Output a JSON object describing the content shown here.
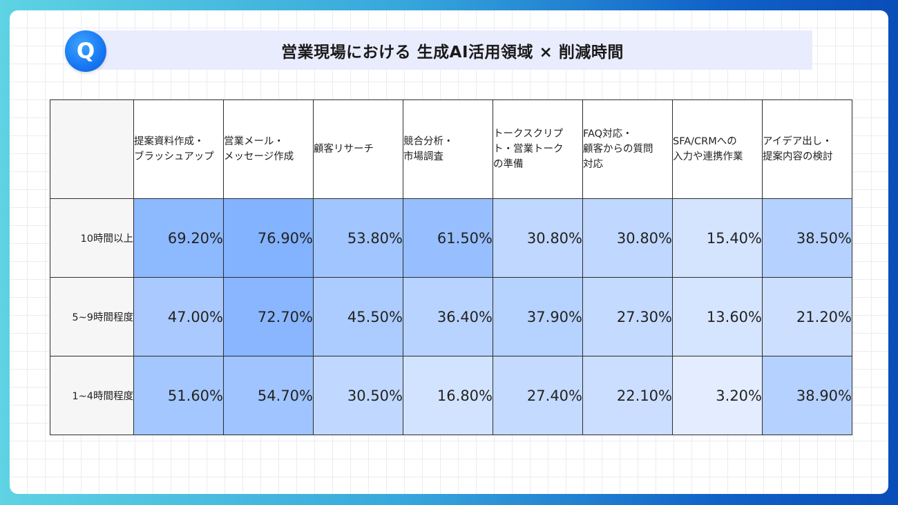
{
  "title": "営業現場における 生成AI活用領域 × 削減時間",
  "logo": {
    "letter": "Q",
    "icon": "q-logo-icon",
    "color": "#1677f2"
  },
  "chart_data": {
    "type": "heatmap",
    "title": "営業現場における 生成AI活用領域 × 削減時間",
    "columns": [
      "提案資料作成・ブラッシュアップ",
      "営業メール・メッセージ作成",
      "顧客リサーチ",
      "競合分析・市場調査",
      "トークスクリプト・営業トークの準備",
      "FAQ対応・顧客からの質問対応",
      "SFA/CRMへの入力や連携作業",
      "アイデア出し・提案内容の検討"
    ],
    "column_lines": [
      [
        "提案資料作成・",
        "ブラッシュアップ"
      ],
      [
        "営業メール・",
        "メッセージ作成"
      ],
      [
        "顧客リサーチ"
      ],
      [
        "競合分析・",
        "市場調査"
      ],
      [
        "トークスクリプ",
        "ト・営業トーク",
        "の準備"
      ],
      [
        "FAQ対応・",
        "顧客からの質問",
        "対応"
      ],
      [
        "SFA/CRMへの",
        "入力や連携作業"
      ],
      [
        "アイデア出し・",
        "提案内容の検討"
      ]
    ],
    "rows": [
      {
        "label": "10時間以上",
        "values": [
          69.2,
          76.9,
          53.8,
          61.5,
          30.8,
          30.8,
          15.4,
          38.5
        ]
      },
      {
        "label": "5~9時間程度",
        "values": [
          47.0,
          72.7,
          45.5,
          36.4,
          37.9,
          27.3,
          13.6,
          21.2
        ]
      },
      {
        "label": "1~4時間程度",
        "values": [
          51.6,
          54.7,
          30.5,
          16.8,
          27.4,
          22.1,
          3.2,
          38.9
        ]
      }
    ],
    "unit": "%",
    "color_scale": {
      "low": "#e8f0ff",
      "high": "#7fb0ff"
    }
  }
}
